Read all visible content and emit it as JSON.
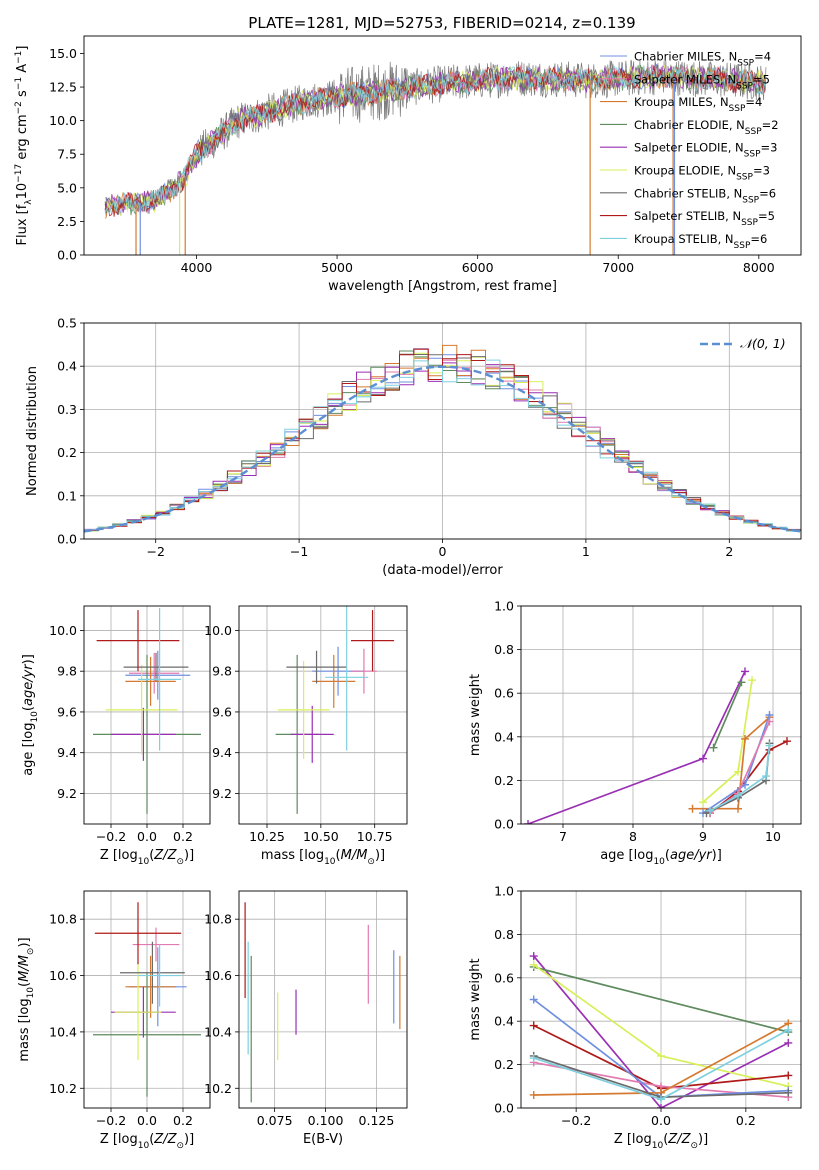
{
  "figure_title": "PLATE=1281, MJD=52753, FIBERID=0214, z=0.139",
  "palette": {
    "Chabrier MILES": "#6f8fe0",
    "Salpeter MILES": "#e27ab0",
    "Kroupa MILES": "#d57a30",
    "Chabrier ELODIE": "#5e8a5e",
    "Salpeter ELODIE": "#9a2fb3",
    "Kroupa ELODIE": "#d8ef5a",
    "Chabrier STELIB": "#6b6b6b",
    "Salpeter STELIB": "#b01a1a",
    "Kroupa STELIB": "#7fd0df"
  },
  "chart_data": [
    {
      "id": "spectrum",
      "type": "line",
      "title": "",
      "xlabel": "wavelength [Angstrom, rest frame]",
      "ylabel": "Flux [f_λ 10^-17 erg cm^-2 s^-1 A^-1]",
      "xlim": [
        3200,
        8300
      ],
      "ylim": [
        0,
        16.3
      ],
      "xticks": [
        4000,
        5000,
        6000,
        7000,
        8000
      ],
      "yticks": [
        0.0,
        2.5,
        5.0,
        7.5,
        10.0,
        12.5,
        15.0
      ],
      "ytick_labels": [
        "0.0",
        "2.5",
        "5.0",
        "7.5",
        "10.0",
        "12.5",
        "15.0"
      ],
      "legend_position": "right",
      "legend": [
        {
          "name": "Chabrier MILES",
          "nssp": "4"
        },
        {
          "name": "Salpeter MILES",
          "nssp": "5"
        },
        {
          "name": "Kroupa MILES",
          "nssp": "4"
        },
        {
          "name": "Chabrier ELODIE",
          "nssp": "2"
        },
        {
          "name": "Salpeter ELODIE",
          "nssp": "3"
        },
        {
          "name": "Kroupa ELODIE",
          "nssp": "3"
        },
        {
          "name": "Chabrier STELIB",
          "nssp": "6"
        },
        {
          "name": "Salpeter STELIB",
          "nssp": "5"
        },
        {
          "name": "Kroupa STELIB",
          "nssp": "6"
        }
      ],
      "continuum": {
        "x": [
          3350,
          3700,
          3900,
          4000,
          4300,
          4800,
          5300,
          5800,
          6300,
          6800,
          7300,
          7800,
          8050
        ],
        "y": [
          3.6,
          4.0,
          5.5,
          7.5,
          10.0,
          11.5,
          12.2,
          12.8,
          13.2,
          13.0,
          13.3,
          13.0,
          12.8
        ]
      }
    },
    {
      "id": "residuals",
      "type": "histogram",
      "xlabel": "(data-model)/error",
      "ylabel": "Normed distribution",
      "xlim": [
        -2.5,
        2.5
      ],
      "ylim": [
        0,
        0.5
      ],
      "xticks": [
        -2,
        -1,
        0,
        1,
        2
      ],
      "yticks": [
        0.0,
        0.1,
        0.2,
        0.3,
        0.4,
        0.5
      ],
      "ytick_labels": [
        "0.0",
        "0.1",
        "0.2",
        "0.3",
        "0.4",
        "0.5"
      ],
      "grid": true,
      "legend_position": "top-right",
      "legend": "𝒩(0, 1)",
      "bin_width": 0.1
    },
    {
      "id": "age-vs-Z",
      "type": "scatter",
      "xlabel": "Z [log10(Z/Z⊙)]",
      "ylabel": "age  [log10(age/yr)]",
      "xlim": [
        -0.35,
        0.35
      ],
      "ylim": [
        9.05,
        10.12
      ],
      "xticks": [
        -0.2,
        0.0,
        0.2
      ],
      "xtick_labels": [
        "−0.2",
        "0.0",
        "0.2"
      ],
      "yticks": [
        9.2,
        9.4,
        9.6,
        9.8,
        10.0
      ],
      "grid": true,
      "points": [
        {
          "model": "Chabrier MILES",
          "x": 0.06,
          "xerr": 0.18,
          "y": 9.78,
          "yerr": 0.12
        },
        {
          "model": "Salpeter MILES",
          "x": 0.04,
          "xerr": 0.14,
          "y": 9.79,
          "yerr": 0.1
        },
        {
          "model": "Kroupa MILES",
          "x": 0.02,
          "xerr": 0.14,
          "y": 9.75,
          "yerr": 0.12
        },
        {
          "model": "Chabrier ELODIE",
          "x": 0.0,
          "xerr": 0.3,
          "y": 9.49,
          "yerr": 0.39
        },
        {
          "model": "Salpeter ELODIE",
          "x": -0.02,
          "xerr": 0.18,
          "y": 9.49,
          "yerr": 0.13
        },
        {
          "model": "Kroupa ELODIE",
          "x": -0.03,
          "xerr": 0.2,
          "y": 9.61,
          "yerr": 0.22
        },
        {
          "model": "Chabrier STELIB",
          "x": 0.05,
          "xerr": 0.18,
          "y": 9.82,
          "yerr": 0.07
        },
        {
          "model": "Salpeter STELIB",
          "x": -0.05,
          "xerr": 0.23,
          "y": 9.95,
          "yerr": 0.15
        },
        {
          "model": "Kroupa STELIB",
          "x": 0.07,
          "xerr": 0.12,
          "y": 9.76,
          "yerr": 0.35
        }
      ]
    },
    {
      "id": "age-vs-mass",
      "type": "scatter",
      "xlabel": "mass [log10(M/M⊙)]",
      "ylabel": "",
      "xlim": [
        10.12,
        10.9
      ],
      "ylim": [
        9.05,
        10.12
      ],
      "xticks": [
        10.25,
        10.5,
        10.75
      ],
      "xtick_labels": [
        "10.25",
        "10.50",
        "10.75"
      ],
      "yticks": [
        9.2,
        9.4,
        9.6,
        9.8,
        10.0
      ],
      "grid": true,
      "points": [
        {
          "model": "Chabrier MILES",
          "x": 10.58,
          "xerr": 0.12,
          "y": 9.8,
          "yerr": 0.12
        },
        {
          "model": "Salpeter MILES",
          "x": 10.7,
          "xerr": 0.06,
          "y": 9.8,
          "yerr": 0.11
        },
        {
          "model": "Kroupa MILES",
          "x": 10.56,
          "xerr": 0.1,
          "y": 9.75,
          "yerr": 0.13
        },
        {
          "model": "Chabrier ELODIE",
          "x": 10.39,
          "xerr": 0.1,
          "y": 9.49,
          "yerr": 0.39
        },
        {
          "model": "Salpeter ELODIE",
          "x": 10.46,
          "xerr": 0.1,
          "y": 9.49,
          "yerr": 0.14
        },
        {
          "model": "Kroupa ELODIE",
          "x": 10.42,
          "xerr": 0.12,
          "y": 9.61,
          "yerr": 0.24
        },
        {
          "model": "Chabrier STELIB",
          "x": 10.48,
          "xerr": 0.14,
          "y": 9.82,
          "yerr": 0.08
        },
        {
          "model": "Salpeter STELIB",
          "x": 10.74,
          "xerr": 0.1,
          "y": 9.95,
          "yerr": 0.15
        },
        {
          "model": "Kroupa STELIB",
          "x": 10.62,
          "xerr": 0.1,
          "y": 9.77,
          "yerr": 0.36
        }
      ]
    },
    {
      "id": "massweight-vs-age",
      "type": "line",
      "xlabel": "age  [log10(age/yr)]",
      "ylabel": "mass weight",
      "xlim": [
        6.4,
        10.4
      ],
      "ylim": [
        0.0,
        1.0
      ],
      "xticks": [
        7,
        8,
        9,
        10
      ],
      "yticks": [
        0.0,
        0.2,
        0.4,
        0.6,
        0.8,
        1.0
      ],
      "ytick_labels": [
        "0.0",
        "0.2",
        "0.4",
        "0.6",
        "0.8",
        "1.0"
      ],
      "grid": true,
      "series": [
        {
          "model": "Salpeter ELODIE",
          "x": [
            6.5,
            9.0,
            9.6
          ],
          "y": [
            0.0,
            0.3,
            0.7
          ]
        },
        {
          "model": "Chabrier ELODIE",
          "x": [
            9.15,
            9.55
          ],
          "y": [
            0.35,
            0.65
          ]
        },
        {
          "model": "Kroupa ELODIE",
          "x": [
            9.0,
            9.5,
            9.7
          ],
          "y": [
            0.1,
            0.24,
            0.66
          ]
        },
        {
          "model": "Kroupa MILES",
          "x": [
            8.85,
            9.5,
            9.6,
            9.95
          ],
          "y": [
            0.07,
            0.07,
            0.39,
            0.49
          ]
        },
        {
          "model": "Salpeter STELIB",
          "x": [
            9.1,
            9.5,
            9.95,
            10.2
          ],
          "y": [
            0.05,
            0.15,
            0.34,
            0.38
          ]
        },
        {
          "model": "Chabrier MILES",
          "x": [
            9.0,
            9.6,
            9.95
          ],
          "y": [
            0.05,
            0.18,
            0.5
          ]
        },
        {
          "model": "Salpeter MILES",
          "x": [
            9.1,
            9.5,
            9.95
          ],
          "y": [
            0.05,
            0.14,
            0.47
          ]
        },
        {
          "model": "Chabrier STELIB",
          "x": [
            9.05,
            9.5,
            9.9,
            9.95
          ],
          "y": [
            0.05,
            0.12,
            0.2,
            0.37
          ]
        },
        {
          "model": "Kroupa STELIB",
          "x": [
            9.1,
            9.5,
            9.9,
            9.95
          ],
          "y": [
            0.06,
            0.13,
            0.22,
            0.36
          ]
        }
      ]
    },
    {
      "id": "mass-vs-Z",
      "type": "scatter",
      "xlabel": "Z [log10(Z/Z⊙)]",
      "ylabel": "mass [log10(M/M⊙)]",
      "xlim": [
        -0.35,
        0.35
      ],
      "ylim": [
        10.13,
        10.9
      ],
      "xticks": [
        -0.2,
        0.0,
        0.2
      ],
      "xtick_labels": [
        "−0.2",
        "0.0",
        "0.2"
      ],
      "yticks": [
        10.2,
        10.4,
        10.6,
        10.8
      ],
      "grid": true,
      "points": [
        {
          "model": "Chabrier MILES",
          "x": 0.06,
          "xerr": 0.16,
          "y": 10.56,
          "yerr": 0.14
        },
        {
          "model": "Salpeter MILES",
          "x": 0.05,
          "xerr": 0.13,
          "y": 10.71,
          "yerr": 0.06
        },
        {
          "model": "Kroupa MILES",
          "x": 0.02,
          "xerr": 0.14,
          "y": 10.56,
          "yerr": 0.11
        },
        {
          "model": "Chabrier ELODIE",
          "x": 0.0,
          "xerr": 0.3,
          "y": 10.39,
          "yerr": 0.22
        },
        {
          "model": "Salpeter ELODIE",
          "x": -0.02,
          "xerr": 0.18,
          "y": 10.47,
          "yerr": 0.09
        },
        {
          "model": "Kroupa ELODIE",
          "x": -0.05,
          "xerr": 0.13,
          "y": 10.47,
          "yerr": 0.17
        },
        {
          "model": "Chabrier STELIB",
          "x": 0.03,
          "xerr": 0.18,
          "y": 10.61,
          "yerr": 0.11
        },
        {
          "model": "Salpeter STELIB",
          "x": -0.05,
          "xerr": 0.24,
          "y": 10.75,
          "yerr": 0.11
        },
        {
          "model": "Kroupa STELIB",
          "x": 0.07,
          "xerr": 0.12,
          "y": 10.6,
          "yerr": 0.11
        }
      ]
    },
    {
      "id": "mass-vs-ebv",
      "type": "scatter",
      "xlabel": "E(B-V)",
      "ylabel": "",
      "xlim": [
        0.0575,
        0.14
      ],
      "ylim": [
        10.13,
        10.9
      ],
      "xticks": [
        0.075,
        0.1,
        0.125
      ],
      "xtick_labels": [
        "0.075",
        "0.100",
        "0.125"
      ],
      "yticks": [
        10.2,
        10.4,
        10.6,
        10.8
      ],
      "grid": true,
      "points": [
        {
          "model": "Salpeter STELIB",
          "x": 0.0605,
          "y": 10.69,
          "yerr": 0.17
        },
        {
          "model": "Kroupa STELIB",
          "x": 0.062,
          "y": 10.52,
          "yerr": 0.2
        },
        {
          "model": "Chabrier ELODIE",
          "x": 0.0635,
          "y": 10.41,
          "yerr": 0.26
        },
        {
          "model": "Kroupa ELODIE",
          "x": 0.0765,
          "y": 10.42,
          "yerr": 0.12
        },
        {
          "model": "Salpeter ELODIE",
          "x": 0.0855,
          "y": 10.47,
          "yerr": 0.08
        },
        {
          "model": "Salpeter MILES",
          "x": 0.121,
          "y": 10.64,
          "yerr": 0.14
        },
        {
          "model": "Chabrier MILES",
          "x": 0.1335,
          "y": 10.56,
          "yerr": 0.13
        },
        {
          "model": "Kroupa MILES",
          "x": 0.1365,
          "y": 10.54,
          "yerr": 0.13
        }
      ]
    },
    {
      "id": "massweight-vs-Z",
      "type": "line",
      "xlabel": "Z [log10(Z/Z⊙)]",
      "ylabel": "mass weight",
      "xlim": [
        -0.33,
        0.33
      ],
      "ylim": [
        0.0,
        1.0
      ],
      "xticks": [
        -0.2,
        0.0,
        0.2
      ],
      "xtick_labels": [
        "−0.2",
        "0.0",
        "0.2"
      ],
      "yticks": [
        0.0,
        0.2,
        0.4,
        0.6,
        0.8,
        1.0
      ],
      "ytick_labels": [
        "0.0",
        "0.2",
        "0.4",
        "0.6",
        "0.8",
        "1.0"
      ],
      "grid": true,
      "series": [
        {
          "model": "Salpeter ELODIE",
          "x": [
            -0.3,
            0.0,
            0.3
          ],
          "y": [
            0.7,
            0.0,
            0.3
          ]
        },
        {
          "model": "Chabrier ELODIE",
          "x": [
            -0.3,
            0.3
          ],
          "y": [
            0.65,
            0.35
          ]
        },
        {
          "model": "Kroupa ELODIE",
          "x": [
            -0.3,
            0.0,
            0.3
          ],
          "y": [
            0.66,
            0.24,
            0.1
          ]
        },
        {
          "model": "Salpeter STELIB",
          "x": [
            -0.3,
            0.0,
            0.3
          ],
          "y": [
            0.38,
            0.09,
            0.15
          ]
        },
        {
          "model": "Salpeter MILES",
          "x": [
            -0.3,
            0.0,
            0.3
          ],
          "y": [
            0.21,
            0.1,
            0.05
          ]
        },
        {
          "model": "Chabrier MILES",
          "x": [
            -0.3,
            0.0,
            0.3
          ],
          "y": [
            0.5,
            0.05,
            0.08
          ]
        },
        {
          "model": "Kroupa MILES",
          "x": [
            -0.3,
            0.0,
            0.3
          ],
          "y": [
            0.06,
            0.07,
            0.39
          ]
        },
        {
          "model": "Chabrier STELIB",
          "x": [
            -0.3,
            0.0,
            0.3
          ],
          "y": [
            0.24,
            0.05,
            0.07
          ]
        },
        {
          "model": "Kroupa STELIB",
          "x": [
            -0.3,
            0.0,
            0.3
          ],
          "y": [
            0.23,
            0.04,
            0.36
          ]
        }
      ]
    }
  ]
}
